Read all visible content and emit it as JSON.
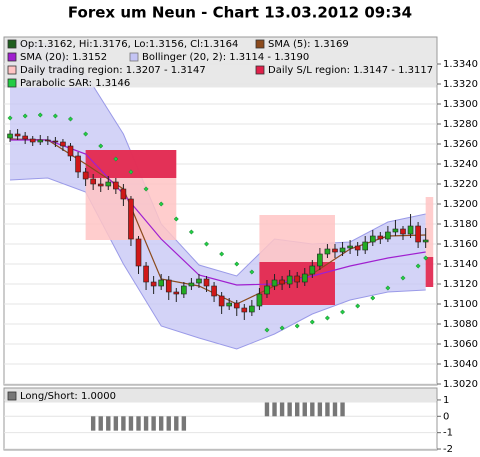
{
  "chart_data": [
    {
      "type": "candlestick",
      "title": "Forex um Neun - Chart 13.03.2012 09:34",
      "xlim": [
        -0.8,
        56.5
      ],
      "ylim": [
        1.3019,
        1.3367
      ],
      "grid": true,
      "yticks": [
        {
          "value": 1.302,
          "label": "1.3020"
        },
        {
          "value": 1.304,
          "label": "1.3040"
        },
        {
          "value": 1.306,
          "label": "1.3060"
        },
        {
          "value": 1.308,
          "label": "1.3080"
        },
        {
          "value": 1.31,
          "label": "1.3100"
        },
        {
          "value": 1.312,
          "label": "1.3120"
        },
        {
          "value": 1.314,
          "label": "1.3140"
        },
        {
          "value": 1.316,
          "label": "1.3160"
        },
        {
          "value": 1.318,
          "label": "1.3180"
        },
        {
          "value": 1.32,
          "label": "1.3200"
        },
        {
          "value": 1.322,
          "label": "1.3220"
        },
        {
          "value": 1.324,
          "label": "1.3240"
        },
        {
          "value": 1.326,
          "label": "1.3260"
        },
        {
          "value": 1.328,
          "label": "1.3280"
        },
        {
          "value": 1.33,
          "label": "1.3300"
        },
        {
          "value": 1.332,
          "label": "1.3320"
        },
        {
          "value": 1.334,
          "label": "1.3340"
        }
      ],
      "candles": {
        "name": "Op:1.3162, Hi:1.3176, Lo:1.3156, Cl:1.3164",
        "color": "#1f5f1f",
        "up_color": "#22aa22",
        "down_color": "#d01818",
        "open": [
          1.3266,
          1.327,
          1.3268,
          1.3265,
          1.3262,
          1.3264,
          1.3263,
          1.3262,
          1.3258,
          1.3248,
          1.3232,
          1.3225,
          1.322,
          1.3218,
          1.3222,
          1.3215,
          1.3205,
          1.3165,
          1.3138,
          1.3122,
          1.3118,
          1.3124,
          1.3112,
          1.311,
          1.3118,
          1.3121,
          1.3125,
          1.3118,
          1.3108,
          1.3098,
          1.3101,
          1.3096,
          1.3092,
          1.3098,
          1.311,
          1.3118,
          1.3124,
          1.312,
          1.3128,
          1.3122,
          1.313,
          1.3138,
          1.315,
          1.3155,
          1.3152,
          1.3156,
          1.3158,
          1.3154,
          1.3162,
          1.3168,
          1.3165,
          1.3172,
          1.3175,
          1.317,
          1.3178,
          1.3162
        ],
        "high": [
          1.3274,
          1.3275,
          1.3272,
          1.3268,
          1.3269,
          1.3268,
          1.3267,
          1.3265,
          1.3261,
          1.3252,
          1.3236,
          1.323,
          1.3226,
          1.3228,
          1.3226,
          1.322,
          1.3208,
          1.3168,
          1.3142,
          1.3128,
          1.313,
          1.3128,
          1.3116,
          1.3122,
          1.3126,
          1.313,
          1.3128,
          1.3122,
          1.3112,
          1.3106,
          1.3104,
          1.31,
          1.3104,
          1.3116,
          1.3124,
          1.313,
          1.3128,
          1.3134,
          1.3132,
          1.3136,
          1.3144,
          1.3156,
          1.316,
          1.316,
          1.3162,
          1.3164,
          1.3162,
          1.3168,
          1.3174,
          1.3172,
          1.3178,
          1.3184,
          1.3178,
          1.319,
          1.3182,
          1.3176
        ],
        "low": [
          1.3262,
          1.3264,
          1.326,
          1.3258,
          1.3259,
          1.3259,
          1.3257,
          1.3253,
          1.3243,
          1.3226,
          1.3218,
          1.3214,
          1.3212,
          1.3214,
          1.321,
          1.3198,
          1.3158,
          1.313,
          1.3114,
          1.311,
          1.3114,
          1.3104,
          1.3102,
          1.3106,
          1.3114,
          1.3116,
          1.3112,
          1.3102,
          1.309,
          1.3094,
          1.3088,
          1.3084,
          1.3088,
          1.3094,
          1.3106,
          1.3114,
          1.3114,
          1.3116,
          1.3116,
          1.3118,
          1.3126,
          1.3134,
          1.3146,
          1.3146,
          1.3148,
          1.315,
          1.3148,
          1.315,
          1.3158,
          1.316,
          1.3162,
          1.3168,
          1.3164,
          1.3166,
          1.3156,
          1.3156
        ],
        "close": [
          1.327,
          1.3268,
          1.3265,
          1.3262,
          1.3264,
          1.3263,
          1.3262,
          1.3258,
          1.3248,
          1.3232,
          1.3225,
          1.322,
          1.3218,
          1.3222,
          1.3215,
          1.3205,
          1.3165,
          1.3138,
          1.3122,
          1.3118,
          1.3124,
          1.3112,
          1.311,
          1.3118,
          1.3121,
          1.3125,
          1.3118,
          1.3108,
          1.3098,
          1.3101,
          1.3096,
          1.3092,
          1.3098,
          1.311,
          1.3118,
          1.3124,
          1.312,
          1.3128,
          1.3122,
          1.313,
          1.3138,
          1.315,
          1.3155,
          1.3152,
          1.3156,
          1.3158,
          1.3154,
          1.3162,
          1.3168,
          1.3165,
          1.3172,
          1.3175,
          1.317,
          1.3178,
          1.3162,
          1.3164
        ]
      },
      "lines": [
        {
          "name": "SMA (5): 1.3169",
          "color": "#8b4a1c",
          "x": [
            0,
            5,
            10,
            15,
            20,
            25,
            30,
            35,
            40,
            45,
            50,
            55
          ],
          "values": [
            1.3265,
            1.3264,
            1.324,
            1.3215,
            1.3125,
            1.3118,
            1.31,
            1.3118,
            1.313,
            1.3155,
            1.3168,
            1.3169
          ]
        },
        {
          "name": "SMA (20): 1.3152",
          "color": "#a020d0",
          "x": [
            0,
            5,
            10,
            15,
            20,
            25,
            30,
            35,
            40,
            45,
            50,
            55
          ],
          "values": [
            1.3264,
            1.3264,
            1.325,
            1.321,
            1.3165,
            1.3129,
            1.3119,
            1.312,
            1.3128,
            1.3138,
            1.3146,
            1.3152
          ]
        }
      ],
      "bollinger": {
        "name": "Bollinger (20, 2): 1.3114 - 1.3190",
        "color": "#c4c4f4",
        "edge_color": "#9a9ae8",
        "x": [
          0,
          5,
          10,
          15,
          20,
          25,
          30,
          35,
          40,
          45,
          50,
          55
        ],
        "upper": [
          1.3364,
          1.336,
          1.333,
          1.327,
          1.318,
          1.3139,
          1.3128,
          1.3165,
          1.316,
          1.3162,
          1.3182,
          1.319
        ],
        "lower": [
          1.3224,
          1.3226,
          1.3212,
          1.314,
          1.3078,
          1.3066,
          1.3055,
          1.307,
          1.309,
          1.3104,
          1.3112,
          1.3114
        ]
      },
      "regions": [
        {
          "name": "Daily trading region: 1.3207 - 1.3147",
          "color": "#ffc4c4",
          "start": [
            10,
            33,
            55
          ],
          "end": [
            22,
            43,
            56
          ],
          "low": [
            1.3164,
            1.3099,
            1.3147
          ],
          "high": [
            1.3254,
            1.3189,
            1.3207
          ]
        },
        {
          "name": "Daily S/L region: 1.3147 - 1.3117",
          "color": "#e0204a",
          "start": [
            10,
            33,
            55
          ],
          "end": [
            22,
            43,
            56
          ],
          "low": [
            1.3226,
            1.3099,
            1.3117
          ],
          "high": [
            1.3254,
            1.3142,
            1.3147
          ]
        }
      ],
      "sar": {
        "name": "Parabolic SAR: 1.3146",
        "color": "#22cc44",
        "x": [
          0,
          2,
          4,
          6,
          8,
          10,
          12,
          14,
          16,
          18,
          20,
          22,
          24,
          26,
          28,
          30,
          32,
          34,
          36,
          38,
          40,
          42,
          44,
          46,
          48,
          50,
          52,
          54,
          55
        ],
        "values": [
          1.3286,
          1.3288,
          1.3289,
          1.3288,
          1.3285,
          1.327,
          1.3258,
          1.3245,
          1.3232,
          1.3215,
          1.32,
          1.3185,
          1.3172,
          1.316,
          1.315,
          1.314,
          1.3132,
          1.3074,
          1.3076,
          1.3078,
          1.3082,
          1.3086,
          1.3092,
          1.3098,
          1.3106,
          1.3116,
          1.3126,
          1.3138,
          1.3146
        ]
      }
    },
    {
      "type": "bar",
      "name": "Long/Short: 1.0000",
      "color": "#777777",
      "xlim": [
        -0.8,
        56.5
      ],
      "ylim": [
        -2.06,
        1.73
      ],
      "yticks": [
        1,
        0,
        -1,
        -2
      ],
      "grid": true,
      "x": [
        11,
        12,
        13,
        14,
        15,
        16,
        17,
        18,
        19,
        20,
        21,
        22,
        23,
        34,
        35,
        36,
        37,
        38,
        39,
        40,
        41,
        42,
        43,
        44
      ],
      "values": [
        -1,
        -1,
        -1,
        -1,
        -1,
        -1,
        -1,
        -1,
        -1,
        -1,
        -1,
        -1,
        -1,
        1,
        1,
        1,
        1,
        1,
        1,
        1,
        1,
        1,
        1,
        1
      ]
    }
  ]
}
